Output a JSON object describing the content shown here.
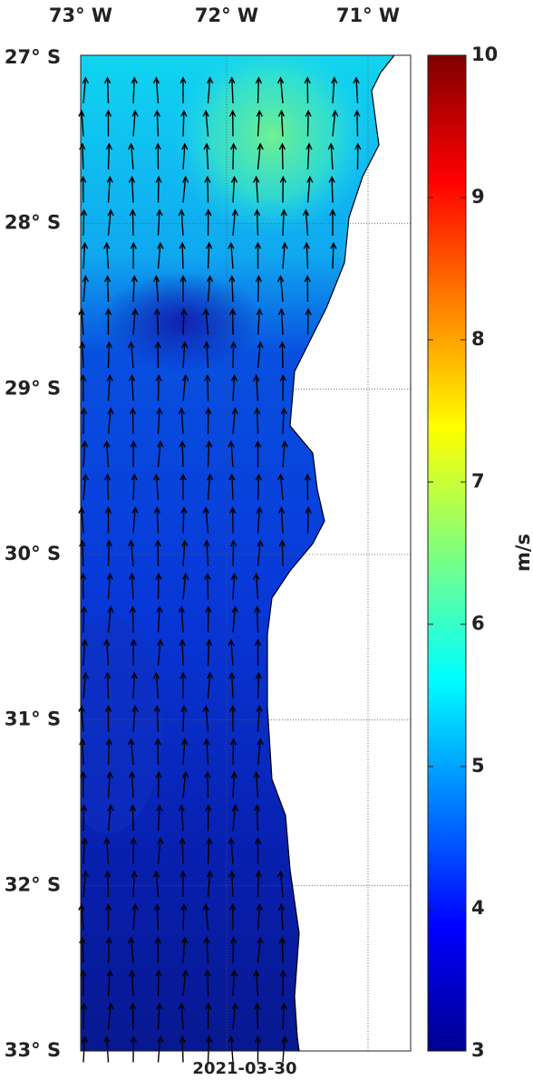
{
  "map": {
    "lon_labels": [
      "73° W",
      "72° W",
      "71° W"
    ],
    "lat_labels": [
      "27° S",
      "28° S",
      "29° S",
      "30° S",
      "31° S",
      "32° S",
      "33° S"
    ],
    "date": "2021-03-30"
  },
  "colorbar": {
    "lim": [
      3,
      10
    ],
    "ticks": [
      3,
      4,
      5,
      6,
      7,
      8,
      9,
      10
    ],
    "label": "m/s"
  }
}
